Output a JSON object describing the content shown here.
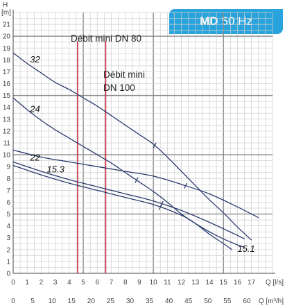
{
  "header": {
    "model": "MD",
    "frequency": "50 Hz"
  },
  "colors": {
    "curve": "#2a3a6e",
    "min_flow_line": "#c8283c",
    "badge": "#29a3dc",
    "grid_minor": "#cfcfcf",
    "grid_major": "#8a8a8a"
  },
  "chart_data": {
    "type": "line",
    "title": "",
    "ylabel": "H",
    "yunit": "[m]",
    "xlabel": "Q [l/s]",
    "x2label": "Q [m³/h]",
    "xlim": [
      0,
      18.5
    ],
    "ylim": [
      0,
      22
    ],
    "x_ticks": [
      0,
      1,
      2,
      3,
      4,
      5,
      6,
      7,
      8,
      9,
      10,
      11,
      12,
      13,
      14,
      15,
      16,
      17
    ],
    "x2_ticks": [
      0,
      5,
      10,
      15,
      20,
      25,
      30,
      35,
      40,
      45,
      50,
      55,
      60
    ],
    "y_ticks": [
      0,
      1,
      2,
      3,
      4,
      5,
      6,
      7,
      8,
      9,
      10,
      11,
      12,
      13,
      14,
      15,
      16,
      17,
      18,
      19,
      20,
      21
    ],
    "major_x_gridlines": [
      5,
      10,
      15
    ],
    "major_y_gridlines": [
      5,
      10,
      15,
      20
    ],
    "grid": true,
    "series": [
      {
        "name": "32",
        "points": [
          [
            0,
            18.6
          ],
          [
            1,
            17.7
          ],
          [
            2,
            16.9
          ],
          [
            3,
            16.1
          ],
          [
            4,
            15.5
          ],
          [
            5,
            14.8
          ],
          [
            6,
            14.1
          ],
          [
            7,
            13.3
          ],
          [
            8,
            12.5
          ],
          [
            9,
            11.7
          ],
          [
            10,
            10.9
          ],
          [
            11,
            9.8
          ],
          [
            12,
            8.6
          ],
          [
            13,
            7.4
          ],
          [
            14,
            6.2
          ],
          [
            15,
            5.1
          ],
          [
            16,
            3.9
          ],
          [
            17,
            2.8
          ]
        ],
        "mark_x": 10.1,
        "label_at": [
          1.2,
          17.8
        ]
      },
      {
        "name": "24",
        "points": [
          [
            0,
            14.8
          ],
          [
            1,
            13.8
          ],
          [
            2,
            12.9
          ],
          [
            3,
            12.1
          ],
          [
            4,
            11.4
          ],
          [
            5,
            10.7
          ],
          [
            6,
            10.0
          ],
          [
            7,
            9.3
          ],
          [
            8,
            8.5
          ],
          [
            9,
            7.7
          ],
          [
            10,
            6.9
          ],
          [
            11,
            6.0
          ],
          [
            12,
            5.0
          ],
          [
            13,
            4.2
          ],
          [
            14,
            3.5
          ],
          [
            15,
            2.9
          ],
          [
            16,
            2.4
          ],
          [
            16.5,
            2.2
          ]
        ],
        "mark_x": 8.8,
        "label_at": [
          1.2,
          13.6
        ]
      },
      {
        "name": "22",
        "points": [
          [
            0,
            10.4
          ],
          [
            2,
            9.8
          ],
          [
            4,
            9.4
          ],
          [
            6,
            9.0
          ],
          [
            8,
            8.6
          ],
          [
            10,
            8.2
          ],
          [
            12,
            7.5
          ],
          [
            14,
            6.7
          ],
          [
            16,
            5.6
          ],
          [
            17.5,
            4.7
          ]
        ],
        "mark_x": 12.3,
        "label_at": [
          1.2,
          9.5
        ]
      },
      {
        "name": "15.3",
        "points": [
          [
            0,
            9.4
          ],
          [
            2,
            8.6
          ],
          [
            4,
            7.9
          ],
          [
            6,
            7.3
          ],
          [
            8,
            6.7
          ],
          [
            10,
            6.1
          ],
          [
            12,
            5.3
          ],
          [
            14,
            4.3
          ],
          [
            16,
            3.2
          ],
          [
            16.5,
            2.9
          ]
        ],
        "mark_x": 10.6,
        "label_at": [
          2.4,
          8.5
        ]
      },
      {
        "name": "15.1",
        "points": [
          [
            0,
            9.1
          ],
          [
            2,
            8.3
          ],
          [
            4,
            7.6
          ],
          [
            6,
            7.0
          ],
          [
            8,
            6.4
          ],
          [
            10,
            5.8
          ],
          [
            12,
            4.9
          ],
          [
            13,
            4.2
          ],
          [
            14,
            3.3
          ],
          [
            15,
            2.5
          ],
          [
            15.6,
            2.0
          ]
        ],
        "mark_x": 10.5,
        "label_at": [
          16.0,
          1.8
        ]
      }
    ],
    "min_flow_lines": [
      {
        "x": 4.6,
        "label_line1": "Débit mini DN 80",
        "label_line2": ""
      },
      {
        "x": 6.6,
        "label_line1": "Débit mini",
        "label_line2": "DN 100"
      }
    ]
  }
}
